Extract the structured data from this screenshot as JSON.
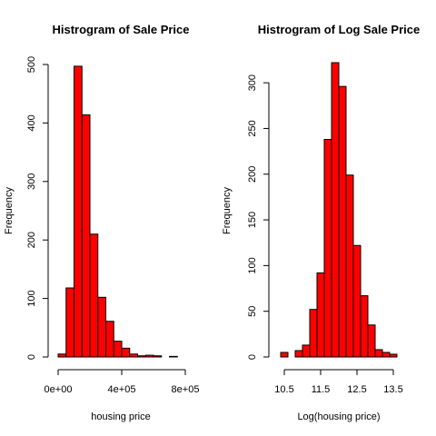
{
  "chart_data": [
    {
      "type": "bar",
      "title": "Histrogram of Sale Price",
      "xlabel": "housing price",
      "ylabel": "Frequency",
      "xlim": [
        0,
        800000
      ],
      "ylim": [
        0,
        500
      ],
      "xticks": [
        0,
        400000,
        800000
      ],
      "xtick_labels": [
        "0e+00",
        "4e+05",
        "8e+05"
      ],
      "yticks": [
        0,
        100,
        200,
        300,
        400,
        500
      ],
      "ytick_labels": [
        "0",
        "100",
        "200",
        "300",
        "400",
        "500"
      ],
      "bins": [
        {
          "x0": 0,
          "x1": 50000,
          "value": 5
        },
        {
          "x0": 50000,
          "x1": 100000,
          "value": 118
        },
        {
          "x0": 100000,
          "x1": 150000,
          "value": 497
        },
        {
          "x0": 150000,
          "x1": 200000,
          "value": 414
        },
        {
          "x0": 200000,
          "x1": 250000,
          "value": 210
        },
        {
          "x0": 250000,
          "x1": 300000,
          "value": 102
        },
        {
          "x0": 300000,
          "x1": 350000,
          "value": 61
        },
        {
          "x0": 350000,
          "x1": 400000,
          "value": 27
        },
        {
          "x0": 400000,
          "x1": 450000,
          "value": 15
        },
        {
          "x0": 450000,
          "x1": 500000,
          "value": 5
        },
        {
          "x0": 500000,
          "x1": 550000,
          "value": 2
        },
        {
          "x0": 550000,
          "x1": 600000,
          "value": 3
        },
        {
          "x0": 600000,
          "x1": 650000,
          "value": 2
        },
        {
          "x0": 650000,
          "x1": 700000,
          "value": 0
        },
        {
          "x0": 700000,
          "x1": 750000,
          "value": 1
        }
      ],
      "bar_color": "#ff0000"
    },
    {
      "type": "bar",
      "title": "Histrogram of Log Sale Price",
      "xlabel": "Log(housing price)",
      "ylabel": "Frequency",
      "xlim": [
        10.4,
        13.6
      ],
      "ylim": [
        0,
        320
      ],
      "xticks": [
        10.5,
        11.5,
        12.5,
        13.5
      ],
      "xtick_labels": [
        "10.5",
        "11.5",
        "12.5",
        "13.5"
      ],
      "yticks": [
        0,
        50,
        100,
        150,
        200,
        250,
        300
      ],
      "ytick_labels": [
        "0",
        "50",
        "100",
        "150",
        "200",
        "250",
        "300"
      ],
      "bins": [
        {
          "x0": 10.4,
          "x1": 10.6,
          "value": 5
        },
        {
          "x0": 10.6,
          "x1": 10.8,
          "value": 0
        },
        {
          "x0": 10.8,
          "x1": 11.0,
          "value": 7
        },
        {
          "x0": 11.0,
          "x1": 11.2,
          "value": 13
        },
        {
          "x0": 11.2,
          "x1": 11.4,
          "value": 52
        },
        {
          "x0": 11.4,
          "x1": 11.6,
          "value": 92
        },
        {
          "x0": 11.6,
          "x1": 11.8,
          "value": 238
        },
        {
          "x0": 11.8,
          "x1": 12.0,
          "value": 322
        },
        {
          "x0": 12.0,
          "x1": 12.2,
          "value": 296
        },
        {
          "x0": 12.2,
          "x1": 12.4,
          "value": 199
        },
        {
          "x0": 12.4,
          "x1": 12.6,
          "value": 122
        },
        {
          "x0": 12.6,
          "x1": 12.8,
          "value": 67
        },
        {
          "x0": 12.8,
          "x1": 13.0,
          "value": 35
        },
        {
          "x0": 13.0,
          "x1": 13.2,
          "value": 8
        },
        {
          "x0": 13.2,
          "x1": 13.4,
          "value": 5
        },
        {
          "x0": 13.4,
          "x1": 13.6,
          "value": 3
        }
      ],
      "bar_color": "#ff0000"
    }
  ]
}
